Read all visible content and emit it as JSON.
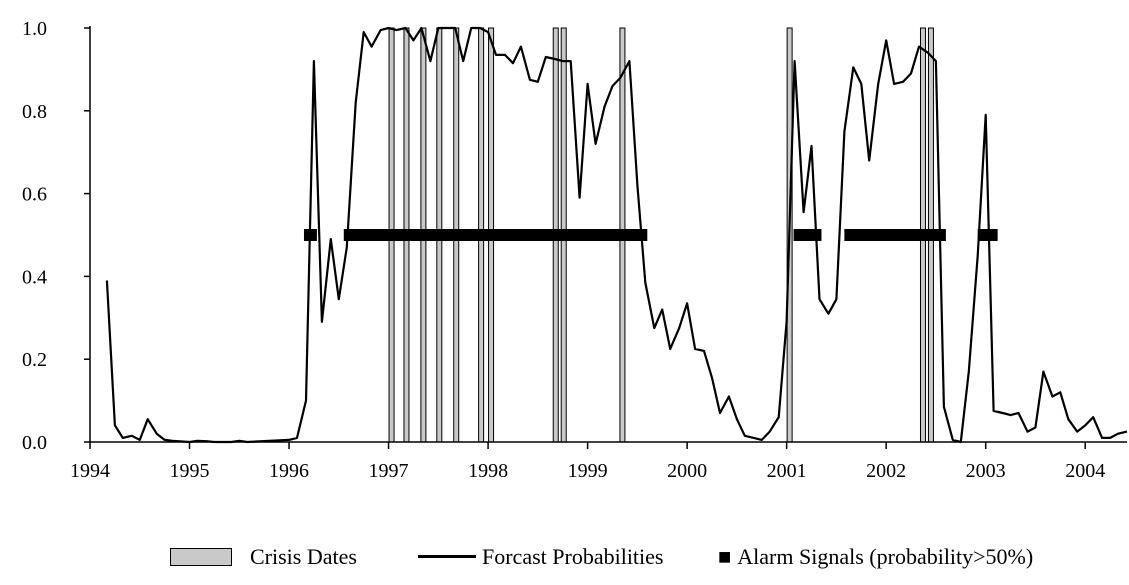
{
  "chart_data": {
    "type": "line",
    "xlim": [
      1994,
      2004.42
    ],
    "ylim": [
      0,
      1
    ],
    "x_ticks": [
      "1994",
      "1995",
      "1996",
      "1997",
      "1998",
      "1999",
      "2000",
      "2001",
      "2002",
      "2003",
      "2004"
    ],
    "y_ticks": [
      "0.0",
      "0.2",
      "0.4",
      "0.6",
      "0.8",
      "1.0"
    ],
    "series": [
      {
        "name": "Forcast Probabilities",
        "color": "#000000",
        "points": [
          [
            1994.17,
            0.39
          ],
          [
            1994.25,
            0.04
          ],
          [
            1994.33,
            0.01
          ],
          [
            1994.42,
            0.015
          ],
          [
            1994.5,
            0.005
          ],
          [
            1994.58,
            0.055
          ],
          [
            1994.67,
            0.02
          ],
          [
            1994.75,
            0.005
          ],
          [
            1994.83,
            0.003
          ],
          [
            1995.0,
            0.0
          ],
          [
            1995.08,
            0.003
          ],
          [
            1995.17,
            0.002
          ],
          [
            1995.25,
            0.0
          ],
          [
            1995.42,
            0.0
          ],
          [
            1995.5,
            0.003
          ],
          [
            1995.58,
            0.0
          ],
          [
            1996.0,
            0.005
          ],
          [
            1996.08,
            0.01
          ],
          [
            1996.17,
            0.1
          ],
          [
            1996.25,
            0.92
          ],
          [
            1996.33,
            0.29
          ],
          [
            1996.42,
            0.49
          ],
          [
            1996.5,
            0.345
          ],
          [
            1996.58,
            0.47
          ],
          [
            1996.67,
            0.82
          ],
          [
            1996.75,
            0.99
          ],
          [
            1996.83,
            0.955
          ],
          [
            1996.92,
            0.995
          ],
          [
            1997.0,
            1.0
          ],
          [
            1997.08,
            0.995
          ],
          [
            1997.17,
            1.0
          ],
          [
            1997.25,
            0.97
          ],
          [
            1997.33,
            1.0
          ],
          [
            1997.42,
            0.92
          ],
          [
            1997.5,
            1.0
          ],
          [
            1997.58,
            1.0
          ],
          [
            1997.67,
            1.0
          ],
          [
            1997.75,
            0.92
          ],
          [
            1997.83,
            1.0
          ],
          [
            1997.92,
            1.0
          ],
          [
            1998.0,
            0.99
          ],
          [
            1998.08,
            0.935
          ],
          [
            1998.17,
            0.935
          ],
          [
            1998.25,
            0.915
          ],
          [
            1998.33,
            0.955
          ],
          [
            1998.42,
            0.875
          ],
          [
            1998.5,
            0.87
          ],
          [
            1998.58,
            0.93
          ],
          [
            1998.67,
            0.925
          ],
          [
            1998.75,
            0.92
          ],
          [
            1998.83,
            0.92
          ],
          [
            1998.92,
            0.59
          ],
          [
            1999.0,
            0.865
          ],
          [
            1999.08,
            0.72
          ],
          [
            1999.17,
            0.81
          ],
          [
            1999.25,
            0.86
          ],
          [
            1999.33,
            0.88
          ],
          [
            1999.42,
            0.92
          ],
          [
            1999.5,
            0.62
          ],
          [
            1999.58,
            0.385
          ],
          [
            1999.67,
            0.275
          ],
          [
            1999.75,
            0.32
          ],
          [
            1999.83,
            0.225
          ],
          [
            1999.92,
            0.275
          ],
          [
            2000.0,
            0.335
          ],
          [
            2000.08,
            0.225
          ],
          [
            2000.17,
            0.22
          ],
          [
            2000.25,
            0.155
          ],
          [
            2000.33,
            0.07
          ],
          [
            2000.42,
            0.11
          ],
          [
            2000.5,
            0.055
          ],
          [
            2000.58,
            0.015
          ],
          [
            2000.67,
            0.01
          ],
          [
            2000.75,
            0.005
          ],
          [
            2000.83,
            0.025
          ],
          [
            2000.92,
            0.06
          ],
          [
            2001.0,
            0.29
          ],
          [
            2001.08,
            0.92
          ],
          [
            2001.17,
            0.555
          ],
          [
            2001.25,
            0.715
          ],
          [
            2001.33,
            0.345
          ],
          [
            2001.42,
            0.31
          ],
          [
            2001.5,
            0.345
          ],
          [
            2001.58,
            0.75
          ],
          [
            2001.67,
            0.905
          ],
          [
            2001.75,
            0.865
          ],
          [
            2001.83,
            0.68
          ],
          [
            2001.92,
            0.865
          ],
          [
            2002.0,
            0.97
          ],
          [
            2002.08,
            0.865
          ],
          [
            2002.17,
            0.87
          ],
          [
            2002.25,
            0.89
          ],
          [
            2002.33,
            0.955
          ],
          [
            2002.42,
            0.94
          ],
          [
            2002.5,
            0.92
          ],
          [
            2002.58,
            0.085
          ],
          [
            2002.67,
            0.005
          ],
          [
            2002.75,
            0.0
          ],
          [
            2002.83,
            0.17
          ],
          [
            2002.92,
            0.45
          ],
          [
            2003.0,
            0.79
          ],
          [
            2003.08,
            0.075
          ],
          [
            2003.17,
            0.07
          ],
          [
            2003.25,
            0.065
          ],
          [
            2003.33,
            0.07
          ],
          [
            2003.42,
            0.025
          ],
          [
            2003.5,
            0.035
          ],
          [
            2003.58,
            0.17
          ],
          [
            2003.67,
            0.11
          ],
          [
            2003.75,
            0.12
          ],
          [
            2003.83,
            0.055
          ],
          [
            2003.92,
            0.025
          ],
          [
            2004.0,
            0.04
          ],
          [
            2004.08,
            0.06
          ],
          [
            2004.17,
            0.01
          ],
          [
            2004.25,
            0.01
          ],
          [
            2004.33,
            0.02
          ],
          [
            2004.42,
            0.025
          ]
        ]
      }
    ],
    "crisis_dates": {
      "name": "Crisis Dates",
      "color": "#c9c9c9",
      "x": [
        1997.03,
        1997.18,
        1997.35,
        1997.51,
        1997.68,
        1997.93,
        1998.03,
        1998.68,
        1998.76,
        1999.35,
        2001.03,
        2002.37,
        2002.45
      ]
    },
    "alarm_signals": {
      "name": "Alarm Signals (probability>50%)",
      "level": 0.5,
      "color": "#000000",
      "ranges": [
        [
          1996.15,
          1996.28
        ],
        [
          1996.55,
          1999.6
        ],
        [
          2001.07,
          2001.35
        ],
        [
          2001.58,
          2002.6
        ],
        [
          2002.92,
          2003.12
        ]
      ]
    },
    "legend": {
      "position": "bottom",
      "items": [
        "Crisis Dates",
        "Forcast Probabilities",
        "Alarm Signals (probability>50%)"
      ],
      "alarm_prefix": "■"
    }
  }
}
